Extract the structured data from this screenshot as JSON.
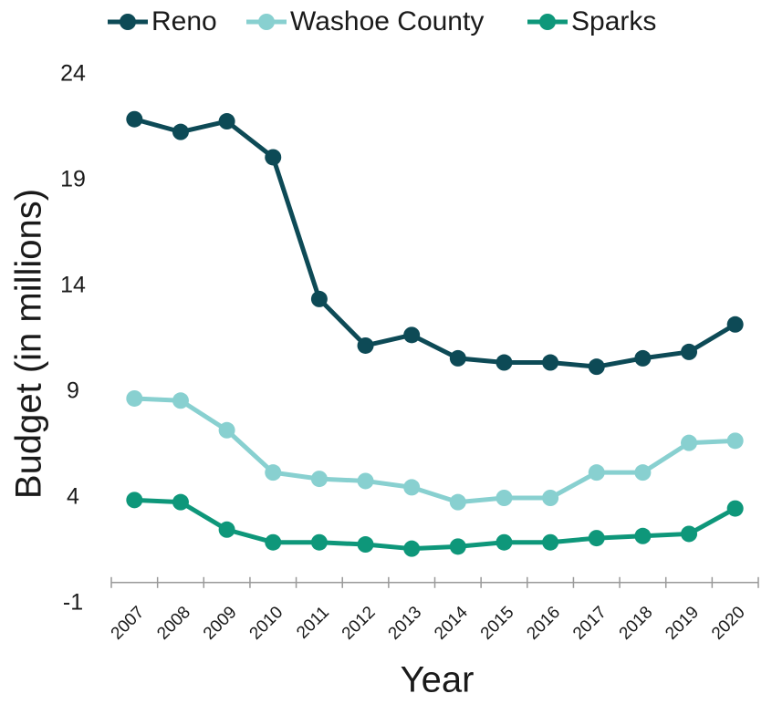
{
  "chart_data": {
    "type": "line",
    "x_label": "Year",
    "y_label": "Budget (in millions)",
    "categories": [
      "2007",
      "2008",
      "2009",
      "2010",
      "2011",
      "2012",
      "2013",
      "2014",
      "2015",
      "2016",
      "2017",
      "2018",
      "2019",
      "2020"
    ],
    "series": [
      {
        "name": "Reno",
        "color": "#0d4a56",
        "values": [
          21.9,
          21.3,
          21.8,
          20.1,
          13.4,
          11.2,
          11.7,
          10.6,
          10.4,
          10.4,
          10.2,
          10.6,
          10.9,
          12.2
        ]
      },
      {
        "name": "Washoe County",
        "color": "#88d0d0",
        "values": [
          8.7,
          8.6,
          7.2,
          5.2,
          4.9,
          4.8,
          4.5,
          3.8,
          4.0,
          4.0,
          5.2,
          5.2,
          6.6,
          6.7
        ]
      },
      {
        "name": "Sparks",
        "color": "#0e977a",
        "values": [
          3.9,
          3.8,
          2.5,
          1.9,
          1.9,
          1.8,
          1.6,
          1.7,
          1.9,
          1.9,
          2.1,
          2.2,
          2.3,
          3.5
        ]
      }
    ],
    "ylim": [
      -1,
      24
    ],
    "yticks": [
      -1,
      4,
      9,
      14,
      19,
      24
    ],
    "grid": false,
    "legend": "top"
  }
}
